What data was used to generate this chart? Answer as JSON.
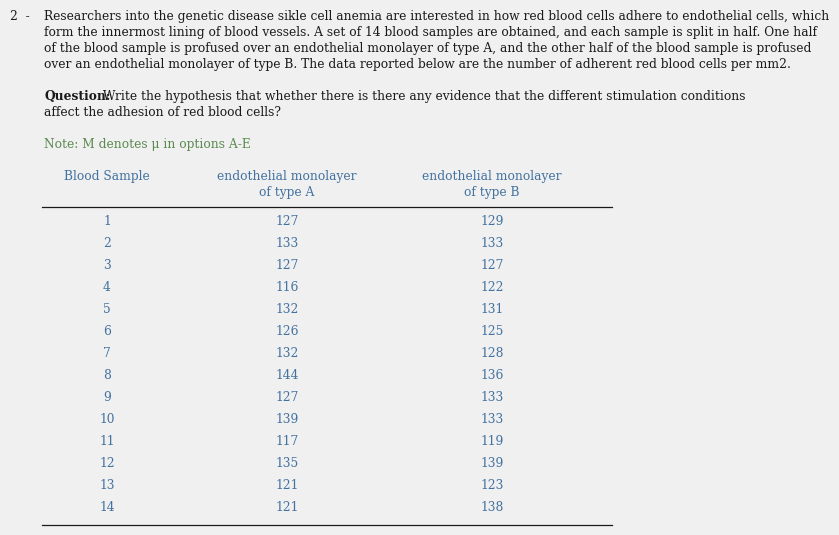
{
  "number_label": "2  -",
  "para_lines": [
    "Researchers into the genetic disease sikle cell anemia are interested in how red blood cells adhere to endothelial cells, which",
    "form the innermost lining of blood vessels. A set of 14 blood samples are obtained, and each sample is split in half. One half",
    "of the blood sample is profused over an endothelial monolayer of type A, and the other half of the blood sample is profused",
    "over an endothelial monolayer of type B. The data reported below are the number of adherent red blood cells per mm2."
  ],
  "question_label": "Question:",
  "question_lines": [
    " Write the hypothesis that whether there is there any evidence that the different stimulation conditions",
    "affect the adhesion of red blood cells?"
  ],
  "note_label": "Note: ",
  "note_text": "M denotes μ in options A-E",
  "col1_header": "Blood Sample",
  "col2_header_line1": "endothelial monolayer",
  "col2_header_line2": "of type A",
  "col3_header_line1": "endothelial monolayer",
  "col3_header_line2": "of type B",
  "samples": [
    1,
    2,
    3,
    4,
    5,
    6,
    7,
    8,
    9,
    10,
    11,
    12,
    13,
    14
  ],
  "type_a": [
    127,
    133,
    127,
    116,
    132,
    126,
    132,
    144,
    127,
    139,
    117,
    135,
    121,
    121
  ],
  "type_b": [
    129,
    133,
    127,
    122,
    131,
    125,
    128,
    136,
    133,
    133,
    119,
    139,
    123,
    138
  ],
  "bg_color": "#f0f0f0",
  "text_color_black": "#1a1a1a",
  "text_color_header": "#4472a0",
  "text_color_data": "#4472a0",
  "text_color_note": "#5a8a50",
  "line_color": "#1a1a1a",
  "para_font_size": 8.8,
  "question_font_size": 8.8,
  "note_font_size": 8.8,
  "header_font_size": 8.8,
  "data_font_size": 8.8,
  "number_font_size": 8.8
}
